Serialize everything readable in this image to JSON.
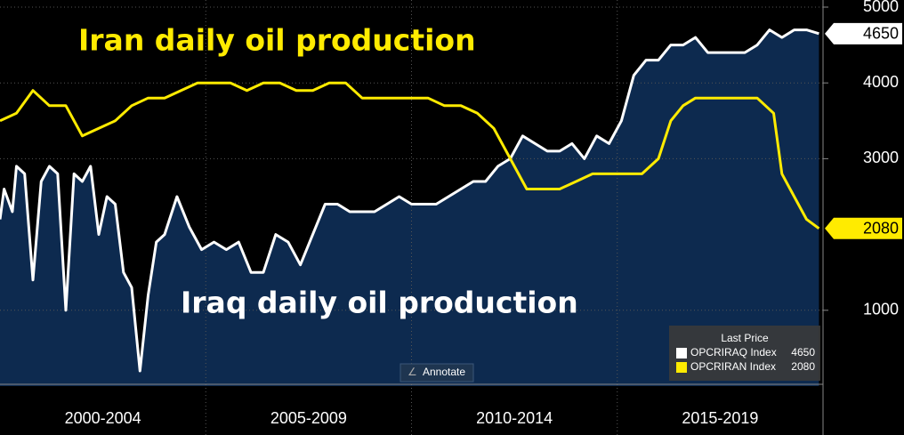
{
  "chart_data": {
    "type": "line",
    "annotations": [
      "Iran daily oil production",
      "Iraq daily oil production"
    ],
    "legend_title": "Last Price",
    "button": "Annotate",
    "categories": [
      "2000-2004",
      "2005-2009",
      "2010-2014",
      "2015-2019"
    ],
    "xlim": [
      2000,
      2020
    ],
    "ylim": [
      0,
      5000
    ],
    "yticks": [
      1000,
      3000,
      4000,
      5000
    ],
    "grid": true,
    "series": [
      {
        "name": "OPCRIRAQ Index",
        "color": "#ffffff",
        "fill": "#0d2a4f",
        "x": [
          2000.0,
          2000.1,
          2000.3,
          2000.4,
          2000.6,
          2000.8,
          2001.0,
          2001.2,
          2001.4,
          2001.6,
          2001.8,
          2002.0,
          2002.2,
          2002.4,
          2002.6,
          2002.8,
          2003.0,
          2003.2,
          2003.4,
          2003.6,
          2003.8,
          2004.0,
          2004.3,
          2004.6,
          2004.9,
          2005.2,
          2005.5,
          2005.8,
          2006.1,
          2006.4,
          2006.7,
          2007.0,
          2007.3,
          2007.6,
          2007.9,
          2008.2,
          2008.5,
          2008.8,
          2009.1,
          2009.4,
          2009.7,
          2010.0,
          2010.3,
          2010.6,
          2010.9,
          2011.2,
          2011.5,
          2011.8,
          2012.1,
          2012.4,
          2012.7,
          2013.0,
          2013.3,
          2013.6,
          2013.9,
          2014.2,
          2014.5,
          2014.8,
          2015.1,
          2015.4,
          2015.7,
          2016.0,
          2016.3,
          2016.6,
          2016.9,
          2017.2,
          2017.5,
          2017.8,
          2018.1,
          2018.4,
          2018.7,
          2019.0,
          2019.3,
          2019.6,
          2019.9
        ],
        "values": [
          2200,
          2600,
          2300,
          2900,
          2800,
          1400,
          2700,
          2900,
          2800,
          1000,
          2800,
          2700,
          2900,
          2000,
          2500,
          2400,
          1500,
          1300,
          200,
          1200,
          1900,
          2000,
          2500,
          2100,
          1800,
          1900,
          1800,
          1900,
          1500,
          1500,
          2000,
          1900,
          1600,
          2000,
          2400,
          2400,
          2300,
          2300,
          2300,
          2400,
          2500,
          2400,
          2400,
          2400,
          2500,
          2600,
          2700,
          2700,
          2900,
          3000,
          3300,
          3200,
          3100,
          3100,
          3200,
          3000,
          3300,
          3200,
          3500,
          4100,
          4300,
          4300,
          4500,
          4500,
          4600,
          4400,
          4400,
          4400,
          4400,
          4500,
          4700,
          4600,
          4700,
          4700,
          4650
        ]
      },
      {
        "name": "OPCRIRAN Index",
        "color": "#ffeb00",
        "x": [
          2000.0,
          2000.4,
          2000.8,
          2001.2,
          2001.6,
          2002.0,
          2002.4,
          2002.8,
          2003.2,
          2003.6,
          2004.0,
          2004.4,
          2004.8,
          2005.2,
          2005.6,
          2006.0,
          2006.4,
          2006.8,
          2007.2,
          2007.6,
          2008.0,
          2008.4,
          2008.8,
          2009.2,
          2009.6,
          2010.0,
          2010.4,
          2010.8,
          2011.2,
          2011.6,
          2012.0,
          2012.4,
          2012.8,
          2013.2,
          2013.6,
          2014.0,
          2014.4,
          2014.8,
          2015.2,
          2015.6,
          2016.0,
          2016.3,
          2016.6,
          2016.9,
          2017.2,
          2017.6,
          2018.0,
          2018.4,
          2018.8,
          2019.0,
          2019.3,
          2019.6,
          2019.9
        ],
        "values": [
          3500,
          3600,
          3900,
          3700,
          3700,
          3300,
          3400,
          3500,
          3700,
          3800,
          3800,
          3900,
          4000,
          4000,
          4000,
          3900,
          4000,
          4000,
          3900,
          3900,
          4000,
          4000,
          3800,
          3800,
          3800,
          3800,
          3800,
          3700,
          3700,
          3600,
          3400,
          3000,
          2600,
          2600,
          2600,
          2700,
          2800,
          2800,
          2800,
          2800,
          3000,
          3500,
          3700,
          3800,
          3800,
          3800,
          3800,
          3800,
          3600,
          2800,
          2500,
          2200,
          2080
        ]
      }
    ]
  }
}
